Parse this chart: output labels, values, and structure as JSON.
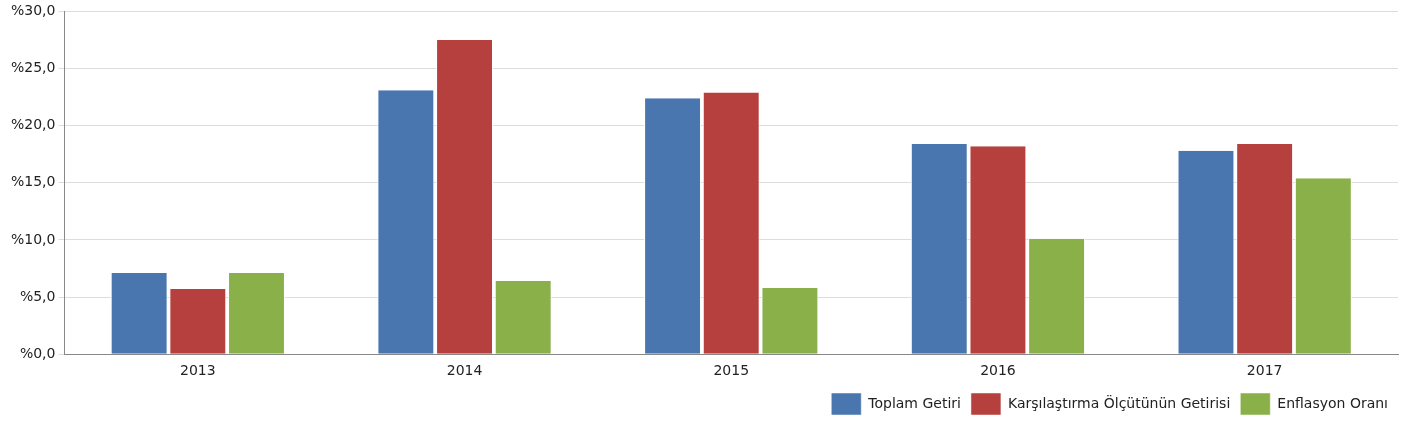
{
  "chart_data": {
    "type": "bar",
    "categories": [
      "2013",
      "2014",
      "2015",
      "2016",
      "2017"
    ],
    "series": [
      {
        "name": "Toplam Getiri",
        "color": "#4a76b0",
        "values": [
          7.1,
          23.1,
          22.4,
          18.4,
          17.8
        ]
      },
      {
        "name": "Karşılaştırma Ölçütünün Getirisi",
        "color": "#b5403e",
        "values": [
          5.7,
          27.5,
          22.9,
          18.2,
          18.4
        ]
      },
      {
        "name": "Enflasyon Oranı",
        "color": "#8ab04a",
        "values": [
          7.1,
          6.4,
          5.8,
          10.1,
          15.4
        ]
      }
    ],
    "ylim": [
      0,
      30
    ],
    "yticks": [
      {
        "value": 0,
        "label": "%0,0"
      },
      {
        "value": 5,
        "label": "%5,0"
      },
      {
        "value": 10,
        "label": "%10,0"
      },
      {
        "value": 15,
        "label": "%15,0"
      },
      {
        "value": 20,
        "label": "%20,0"
      },
      {
        "value": 25,
        "label": "%25,0"
      },
      {
        "value": 30,
        "label": "%30,0"
      }
    ],
    "grid": "y",
    "legend": "bottom right"
  }
}
